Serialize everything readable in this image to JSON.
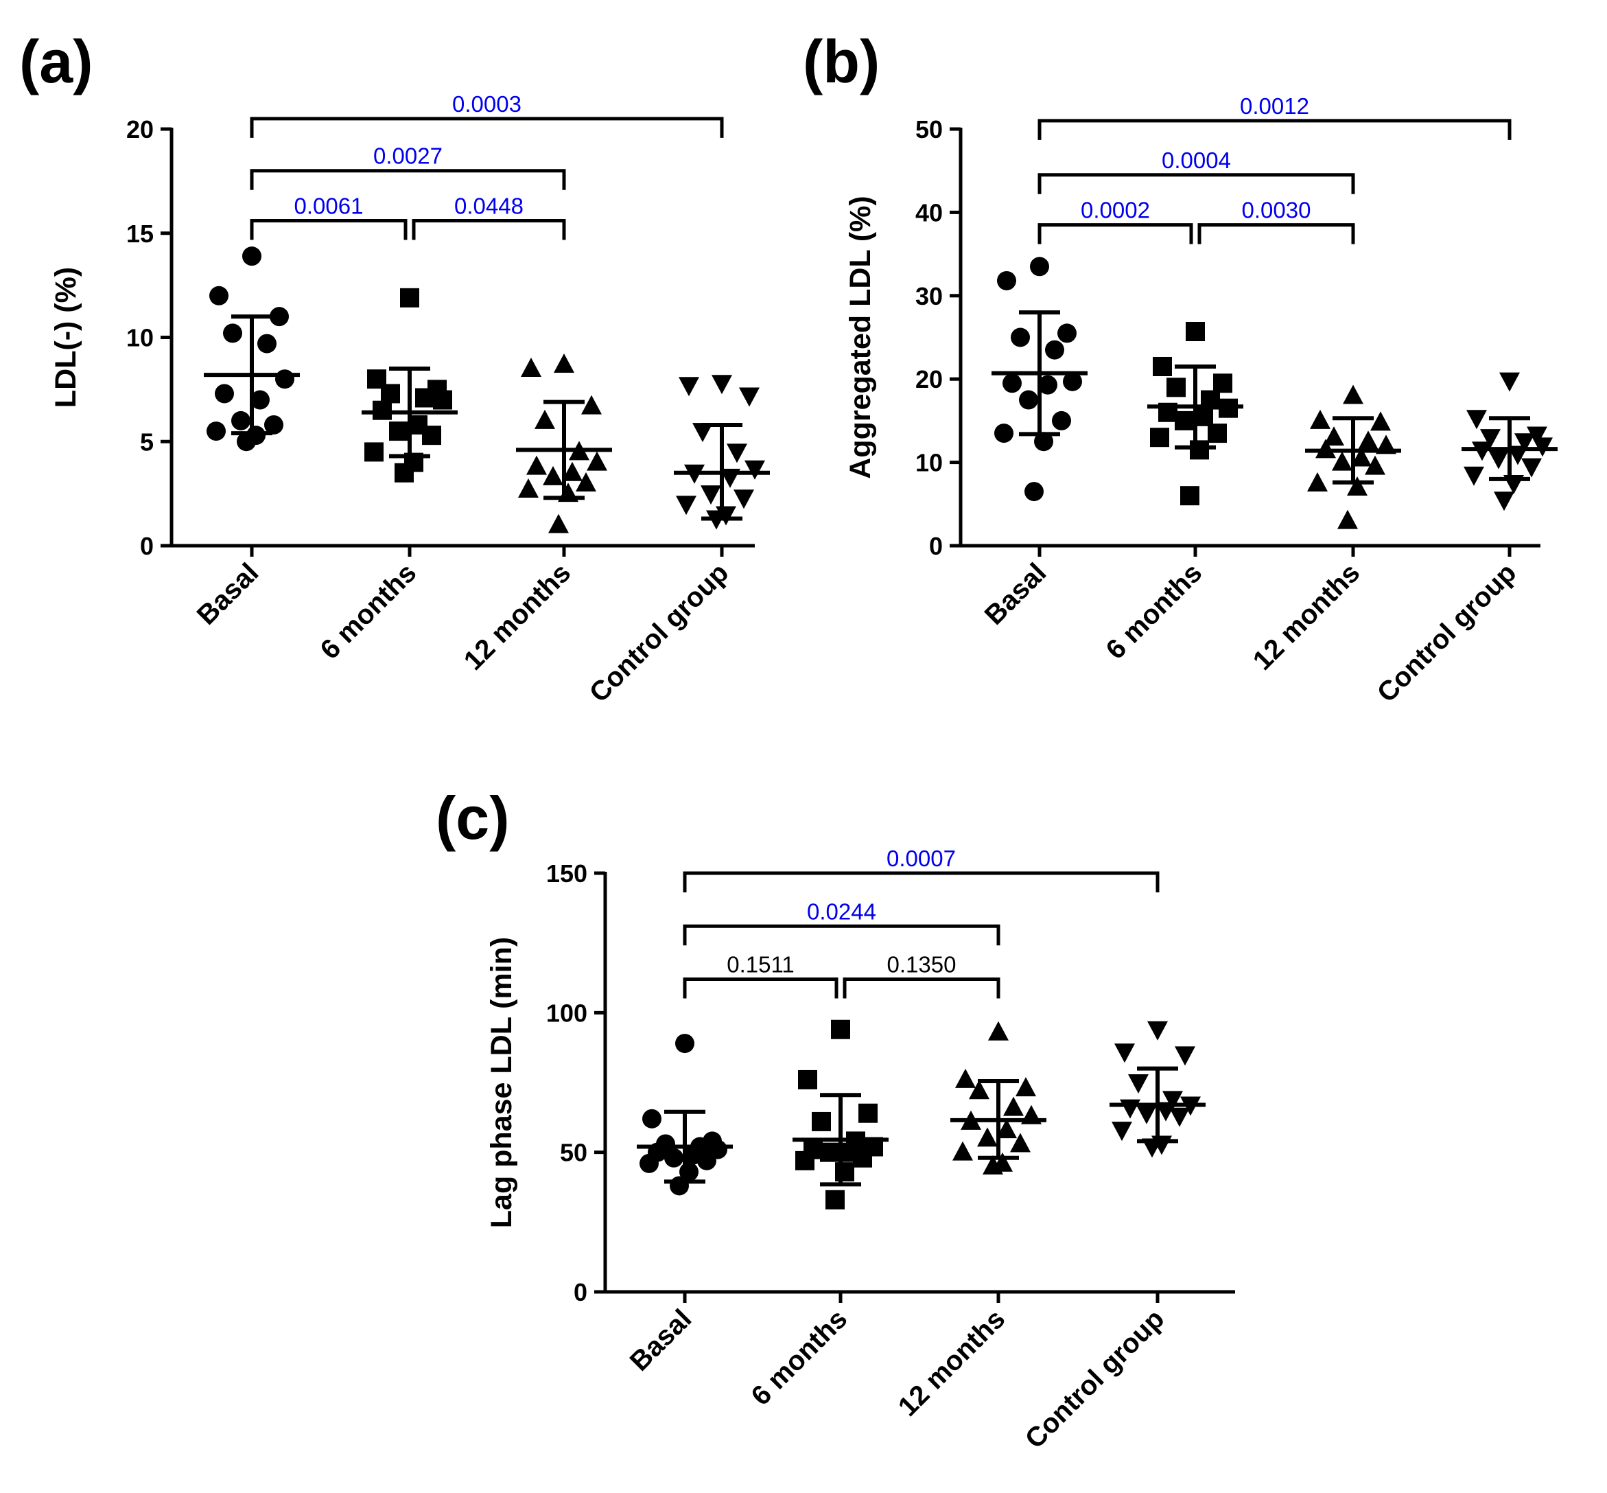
{
  "chart_data": [
    {
      "panel": "(a)",
      "type": "scatter",
      "ylabel": "LDL(-) (%)",
      "ylim": [
        0,
        20
      ],
      "yticks": [
        0,
        5,
        10,
        15,
        20
      ],
      "categories": [
        "Basal",
        "6 months",
        "12 months",
        "Control group"
      ],
      "markers": [
        "circle",
        "square",
        "triangle-up",
        "triangle-down"
      ],
      "groups": [
        {
          "name": "Basal",
          "mean": 8.2,
          "sd_low": 5.4,
          "sd_high": 11.0,
          "points": [
            13.9,
            12.0,
            11.0,
            10.2,
            9.7,
            8.0,
            7.3,
            7.0,
            6.0,
            5.8,
            5.5,
            5.3,
            5.0
          ]
        },
        {
          "name": "6 months",
          "mean": 6.4,
          "sd_low": 4.3,
          "sd_high": 8.5,
          "points": [
            11.9,
            8.0,
            7.5,
            7.3,
            7.1,
            7.0,
            6.5,
            5.8,
            5.5,
            5.3,
            4.5,
            4.0,
            3.5
          ]
        },
        {
          "name": "12 months",
          "mean": 4.6,
          "sd_low": 2.3,
          "sd_high": 6.9,
          "points": [
            8.7,
            8.5,
            6.7,
            6.0,
            4.5,
            4.0,
            3.8,
            3.5,
            3.3,
            3.0,
            2.7,
            2.5,
            1.0
          ]
        },
        {
          "name": "Control group",
          "mean": 3.5,
          "sd_low": 1.3,
          "sd_high": 5.8,
          "points": [
            7.8,
            7.7,
            7.2,
            5.5,
            4.5,
            3.7,
            3.5,
            3.3,
            2.5,
            2.3,
            2.0,
            1.5,
            1.3
          ]
        }
      ],
      "comparisons": [
        {
          "from": 0,
          "to": 1,
          "level": 15.6,
          "label": "0.0061",
          "color": "#0000ee"
        },
        {
          "from": 1,
          "to": 2,
          "level": 15.6,
          "label": "0.0448",
          "color": "#0000ee"
        },
        {
          "from": 0,
          "to": 2,
          "level": 18.0,
          "label": "0.0027",
          "color": "#0000ee"
        },
        {
          "from": 0,
          "to": 3,
          "level": 20.5,
          "label": "0.0003",
          "color": "#0000ee"
        }
      ]
    },
    {
      "panel": "(b)",
      "type": "scatter",
      "ylabel": "Aggregated LDL (%)",
      "ylim": [
        0,
        50
      ],
      "yticks": [
        0,
        10,
        20,
        30,
        40,
        50
      ],
      "categories": [
        "Basal",
        "6 months",
        "12 months",
        "Control group"
      ],
      "markers": [
        "circle",
        "square",
        "triangle-up",
        "triangle-down"
      ],
      "groups": [
        {
          "name": "Basal",
          "mean": 20.7,
          "sd_low": 13.4,
          "sd_high": 28.0,
          "points": [
            33.5,
            31.8,
            25.5,
            25.0,
            23.5,
            19.7,
            19.5,
            19.3,
            17.5,
            15.0,
            13.5,
            12.5,
            6.5
          ]
        },
        {
          "name": "6 months",
          "mean": 16.7,
          "sd_low": 11.8,
          "sd_high": 21.5,
          "points": [
            25.7,
            21.5,
            19.5,
            19.0,
            17.5,
            16.5,
            16.0,
            15.5,
            15.0,
            13.5,
            13.0,
            11.5,
            6.0
          ]
        },
        {
          "name": "12 months",
          "mean": 11.4,
          "sd_low": 7.6,
          "sd_high": 15.3,
          "points": [
            18.0,
            15.0,
            14.8,
            13.0,
            12.5,
            12.0,
            11.5,
            10.5,
            10.0,
            9.5,
            7.5,
            7.0,
            3.0
          ]
        },
        {
          "name": "Control group",
          "mean": 11.6,
          "sd_low": 8.0,
          "sd_high": 15.3,
          "points": [
            19.8,
            15.3,
            13.3,
            13.0,
            12.5,
            12.0,
            11.5,
            11.0,
            10.5,
            9.5,
            8.5,
            7.5,
            5.5
          ]
        }
      ],
      "comparisons": [
        {
          "from": 0,
          "to": 1,
          "level": 38.5,
          "label": "0.0002",
          "color": "#0000ee"
        },
        {
          "from": 1,
          "to": 2,
          "level": 38.5,
          "label": "0.0030",
          "color": "#0000ee"
        },
        {
          "from": 0,
          "to": 2,
          "level": 44.5,
          "label": "0.0004",
          "color": "#0000ee"
        },
        {
          "from": 0,
          "to": 3,
          "level": 51.0,
          "label": "0.0012",
          "color": "#0000ee"
        }
      ]
    },
    {
      "panel": "(c)",
      "type": "scatter",
      "ylabel": "Lag phase LDL (min)",
      "ylim": [
        0,
        150
      ],
      "yticks": [
        0,
        50,
        100,
        150
      ],
      "categories": [
        "Basal",
        "6 months",
        "12 months",
        "Control group"
      ],
      "markers": [
        "circle",
        "square",
        "triangle-up",
        "triangle-down"
      ],
      "groups": [
        {
          "name": "Basal",
          "mean": 52,
          "sd_low": 39.5,
          "sd_high": 64.5,
          "points": [
            89,
            62,
            54,
            53,
            52,
            51,
            50,
            49,
            48,
            47,
            46,
            43,
            38
          ]
        },
        {
          "name": "6 months",
          "mean": 54.5,
          "sd_low": 38.5,
          "sd_high": 70.5,
          "points": [
            94,
            76,
            64,
            61,
            54,
            52,
            51,
            50,
            50,
            48,
            47,
            43,
            33
          ]
        },
        {
          "name": "12 months",
          "mean": 61.5,
          "sd_low": 48.0,
          "sd_high": 75.5,
          "points": [
            93,
            76,
            73,
            72,
            66,
            63,
            61,
            58,
            55,
            53,
            50,
            46,
            45
          ]
        },
        {
          "name": "Control group",
          "mean": 67,
          "sd_low": 54.0,
          "sd_high": 80.0,
          "points": [
            94,
            86,
            85,
            75,
            69,
            67,
            66,
            65,
            64,
            63,
            58,
            53,
            52
          ]
        }
      ],
      "comparisons": [
        {
          "from": 0,
          "to": 1,
          "level": 112,
          "label": "0.1511",
          "color": "#000000"
        },
        {
          "from": 1,
          "to": 2,
          "level": 112,
          "label": "0.1350",
          "color": "#000000"
        },
        {
          "from": 0,
          "to": 2,
          "level": 131,
          "label": "0.0244",
          "color": "#0000ee"
        },
        {
          "from": 0,
          "to": 3,
          "level": 150,
          "label": "0.0007",
          "color": "#0000ee"
        }
      ]
    }
  ]
}
